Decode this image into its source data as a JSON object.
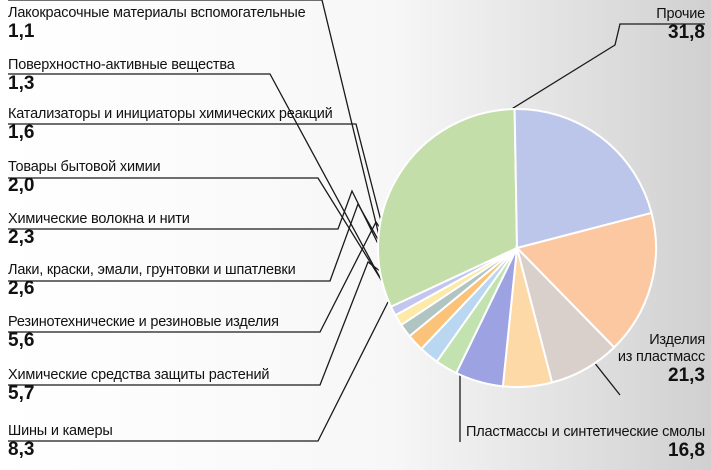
{
  "chart_data": {
    "type": "pie",
    "title": "",
    "colors": {
      "prochie": "#c3dea8",
      "plastmass_izd": "#bcc6ea",
      "plastmassy_smoly": "#fcc8a2",
      "shiny": "#d9d0cc",
      "him_sredstva": "#fdd9a8",
      "rezino": "#9da3e2",
      "laki": "#c2e3b0",
      "volokna": "#b9d7f0",
      "bytovaya": "#fbc27a",
      "katalizatory": "#b0c4c2",
      "pav": "#fde9a8",
      "lkm": "#c2c6ef"
    },
    "slices": [
      {
        "key": "prochie",
        "label": "Прочие",
        "value": 31.8,
        "value_label": "31,8"
      },
      {
        "key": "plastmass_izd",
        "label": "Изделия из пластмасс",
        "label_lines": [
          "Изделия",
          "из пластмасс"
        ],
        "value": 21.3,
        "value_label": "21,3"
      },
      {
        "key": "plastmassy_smoly",
        "label": "Пластмассы и синтетические смолы",
        "value": 16.8,
        "value_label": "16,8"
      },
      {
        "key": "shiny",
        "label": "Шины и камеры",
        "value": 8.3,
        "value_label": "8,3"
      },
      {
        "key": "him_sredstva",
        "label": "Химические средства защиты растений",
        "value": 5.7,
        "value_label": "5,7"
      },
      {
        "key": "rezino",
        "label": "Резинотехнические и резиновые изделия",
        "value": 5.6,
        "value_label": "5,6"
      },
      {
        "key": "laki",
        "label": "Лаки, краски, эмали, грунтовки и шпатлевки",
        "value": 2.6,
        "value_label": "2,6"
      },
      {
        "key": "volokna",
        "label": "Химические волокна и нити",
        "value": 2.3,
        "value_label": "2,3"
      },
      {
        "key": "bytovaya",
        "label": "Товары бытовой химии",
        "value": 2.0,
        "value_label": "2,0"
      },
      {
        "key": "katalizatory",
        "label": "Катализаторы и инициаторы химических реакций",
        "value": 1.6,
        "value_label": "1,6"
      },
      {
        "key": "pav",
        "label": "Поверхностно-активные вещества",
        "value": 1.3,
        "value_label": "1,3"
      },
      {
        "key": "lkm",
        "label": "Лакокрасочные материалы вспомогательные",
        "value": 1.1,
        "value_label": "1,1"
      }
    ],
    "legend": "callouts"
  }
}
